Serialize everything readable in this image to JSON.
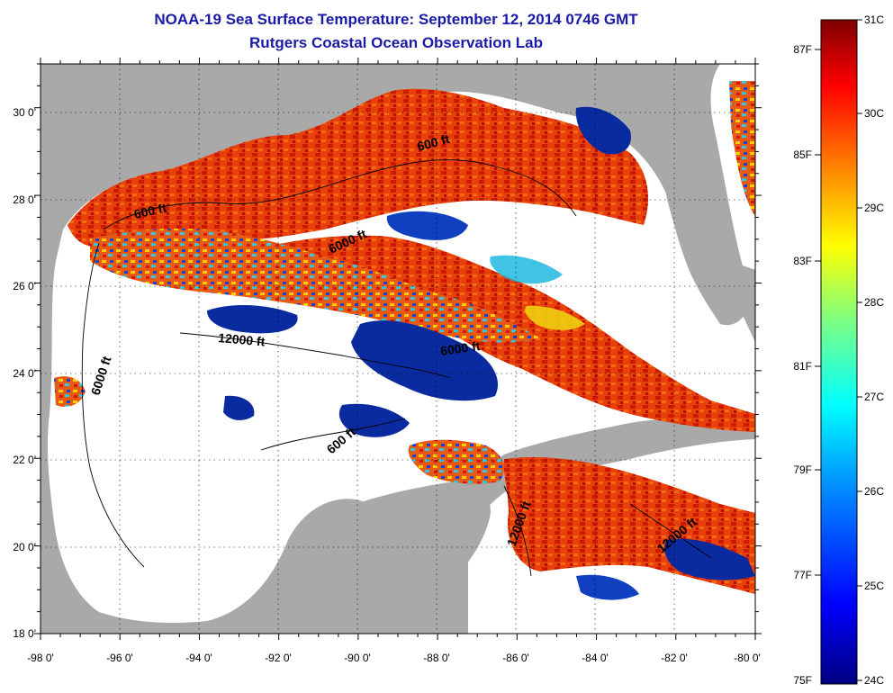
{
  "title": "NOAA-19 Sea Surface Temperature:  September 12, 2014 0746 GMT",
  "subtitle": "Rutgers Coastal Ocean Observation Lab",
  "map": {
    "region": "Gulf of Mexico",
    "lon_range": [
      -98,
      -80
    ],
    "lat_range": [
      18,
      31
    ],
    "x_ticks": [
      "-98 0'",
      "-96 0'",
      "-94 0'",
      "-92 0'",
      "-90 0'",
      "-88 0'",
      "-86 0'",
      "-84 0'",
      "-82 0'",
      "-80 0'"
    ],
    "y_ticks": [
      "30 0'",
      "28 0'",
      "26 0'",
      "24 0'",
      "22 0'",
      "20 0'",
      "18 0'"
    ],
    "contour_labels": [
      "600 ft",
      "600 ft",
      "6000 ft",
      "12000 ft",
      "6000 ft",
      "6000 ft",
      "600 ft",
      "12000 ft",
      "12000 ft"
    ],
    "colors": {
      "land": "#a9a9a9",
      "cloud": "#ffffff",
      "warm": "#e03000",
      "cold": "#0a2ba0"
    }
  },
  "colorbar": {
    "celsius": [
      "31C",
      "30C",
      "29C",
      "28C",
      "27C",
      "26C",
      "25C",
      "24C"
    ],
    "fahrenheit": [
      "87F",
      "85F",
      "83F",
      "81F",
      "79F",
      "77F",
      "75F"
    ],
    "celsius_range": [
      24,
      31
    ],
    "colors": [
      "#000080",
      "#0000ff",
      "#0080ff",
      "#00ffff",
      "#80ff80",
      "#ffff00",
      "#ff8000",
      "#ff0000",
      "#800000"
    ]
  }
}
